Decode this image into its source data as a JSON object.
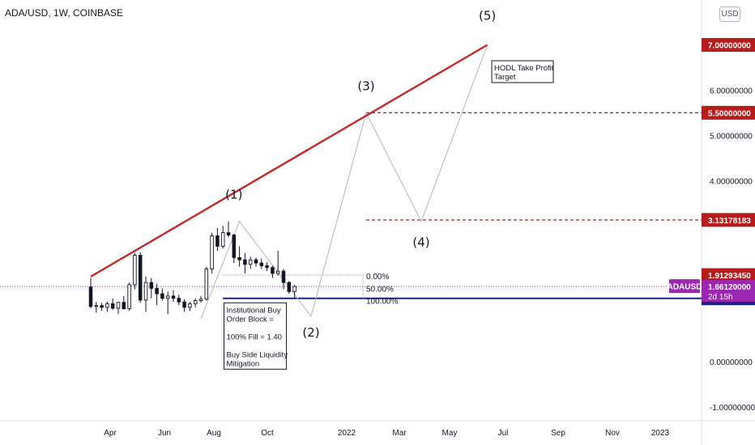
{
  "header": {
    "symbol": "ADA/USD, 1W, COINBASE",
    "currency_button": "USD"
  },
  "chart_data": {
    "type": "candlestick",
    "symbol": "ADAUSD",
    "scale": "linear",
    "ylim": [
      -1.2,
      8.1
    ],
    "y_ticks": [
      {
        "value": 6.0,
        "label": "6.00000000"
      },
      {
        "value": 5.0,
        "label": "5.00000000"
      },
      {
        "value": 4.0,
        "label": "4.00000000"
      },
      {
        "value": 0.0,
        "label": "0.00000000"
      },
      {
        "value": -1.0,
        "label": "-1.00000000"
      }
    ],
    "x_ticks": [
      "Apr",
      "Jun",
      "Aug",
      "Oct",
      "2022",
      "Mar",
      "May",
      "Jul",
      "Sep",
      "Nov",
      "2023"
    ],
    "candles": [
      {
        "o": 1.65,
        "h": 1.85,
        "l": 1.18,
        "c": 1.22
      },
      {
        "o": 1.22,
        "h": 1.32,
        "l": 1.08,
        "c": 1.24
      },
      {
        "o": 1.24,
        "h": 1.3,
        "l": 1.12,
        "c": 1.2
      },
      {
        "o": 1.2,
        "h": 1.33,
        "l": 1.1,
        "c": 1.28
      },
      {
        "o": 1.28,
        "h": 1.4,
        "l": 1.15,
        "c": 1.18
      },
      {
        "o": 1.18,
        "h": 1.32,
        "l": 1.05,
        "c": 1.31
      },
      {
        "o": 1.31,
        "h": 1.45,
        "l": 1.15,
        "c": 1.17
      },
      {
        "o": 1.17,
        "h": 1.75,
        "l": 1.12,
        "c": 1.7
      },
      {
        "o": 1.7,
        "h": 2.4,
        "l": 1.6,
        "c": 2.35
      },
      {
        "o": 2.35,
        "h": 2.42,
        "l": 1.3,
        "c": 1.36
      },
      {
        "o": 1.36,
        "h": 1.88,
        "l": 1.1,
        "c": 1.75
      },
      {
        "o": 1.75,
        "h": 1.85,
        "l": 1.4,
        "c": 1.62
      },
      {
        "o": 1.62,
        "h": 1.72,
        "l": 1.25,
        "c": 1.5
      },
      {
        "o": 1.5,
        "h": 1.62,
        "l": 1.35,
        "c": 1.4
      },
      {
        "o": 1.4,
        "h": 1.55,
        "l": 1.05,
        "c": 1.45
      },
      {
        "o": 1.45,
        "h": 1.58,
        "l": 1.32,
        "c": 1.4
      },
      {
        "o": 1.4,
        "h": 1.48,
        "l": 1.25,
        "c": 1.32
      },
      {
        "o": 1.32,
        "h": 1.38,
        "l": 1.1,
        "c": 1.2
      },
      {
        "o": 1.2,
        "h": 1.32,
        "l": 1.12,
        "c": 1.28
      },
      {
        "o": 1.28,
        "h": 1.4,
        "l": 1.2,
        "c": 1.35
      },
      {
        "o": 1.35,
        "h": 1.45,
        "l": 1.3,
        "c": 1.38
      },
      {
        "o": 1.38,
        "h": 2.1,
        "l": 1.35,
        "c": 2.05
      },
      {
        "o": 2.05,
        "h": 2.85,
        "l": 1.95,
        "c": 2.78
      },
      {
        "o": 2.78,
        "h": 2.95,
        "l": 2.45,
        "c": 2.55
      },
      {
        "o": 2.55,
        "h": 3.0,
        "l": 2.5,
        "c": 2.85
      },
      {
        "o": 2.85,
        "h": 3.1,
        "l": 2.75,
        "c": 2.8
      },
      {
        "o": 2.8,
        "h": 2.82,
        "l": 2.18,
        "c": 2.3
      },
      {
        "o": 2.3,
        "h": 2.55,
        "l": 2.1,
        "c": 2.25
      },
      {
        "o": 2.25,
        "h": 2.4,
        "l": 1.95,
        "c": 2.15
      },
      {
        "o": 2.15,
        "h": 2.32,
        "l": 2.05,
        "c": 2.25
      },
      {
        "o": 2.25,
        "h": 2.3,
        "l": 2.1,
        "c": 2.18
      },
      {
        "o": 2.18,
        "h": 2.28,
        "l": 2.05,
        "c": 2.12
      },
      {
        "o": 2.12,
        "h": 2.2,
        "l": 2.0,
        "c": 2.08
      },
      {
        "o": 2.08,
        "h": 2.12,
        "l": 1.85,
        "c": 1.95
      },
      {
        "o": 1.95,
        "h": 2.45,
        "l": 1.9,
        "c": 2.0
      },
      {
        "o": 2.0,
        "h": 2.05,
        "l": 1.6,
        "c": 1.75
      },
      {
        "o": 1.75,
        "h": 1.78,
        "l": 1.5,
        "c": 1.55
      },
      {
        "o": 1.55,
        "h": 1.7,
        "l": 1.4,
        "c": 1.66
      }
    ],
    "price_lines": [
      {
        "value": 7.0,
        "label": "7.00000000",
        "style": "price-tag",
        "color": "#b71c1c"
      },
      {
        "value": 5.5,
        "label": "5.50000000",
        "style": "dashed",
        "color": "#b71c1c"
      },
      {
        "value": 3.13178183,
        "label": "3.13178183",
        "style": "dashed",
        "color": "#b71c1c"
      },
      {
        "value": 1.9129345,
        "label": "1.91293450",
        "style": "price-tag",
        "color": "#b71c1c"
      },
      {
        "value": 1.4,
        "label": "1.40000000",
        "style": "solid",
        "color": "#1a237e"
      }
    ],
    "current_price": {
      "value": 1.6612,
      "label": "1.66120000",
      "countdown": "2d 15h",
      "symbol_tag": "ADAUSD",
      "color": "#9c27b0"
    },
    "fib_levels": [
      {
        "label": "0.00%",
        "value": 1.9129345
      },
      {
        "label": "50.00%",
        "value": 1.65646725
      },
      {
        "label": "100.00%",
        "value": 1.4
      }
    ],
    "trendline": {
      "color": "#c62828",
      "points": [
        {
          "week": 0,
          "value": 1.88
        },
        {
          "week": 72,
          "value": 7.0
        }
      ]
    },
    "wave_path": {
      "color": "#bdbdbd",
      "points": [
        {
          "week": 20,
          "value": 0.95
        },
        {
          "week": 27,
          "value": 3.1
        },
        {
          "week": 40,
          "value": 1.0
        },
        {
          "week": 50,
          "value": 5.5
        },
        {
          "week": 60,
          "value": 3.1
        },
        {
          "week": 72,
          "value": 7.0
        }
      ]
    },
    "wave_labels": [
      {
        "label": "(1)",
        "week": 26,
        "value": 3.6
      },
      {
        "label": "(2)",
        "week": 40,
        "value": 0.55
      },
      {
        "label": "(3)",
        "week": 50,
        "value": 6.0
      },
      {
        "label": "(4)",
        "week": 60,
        "value": 2.55
      },
      {
        "label": "(5)",
        "week": 72,
        "value": 7.55
      }
    ],
    "annotations": [
      {
        "name": "order-block-note",
        "week": 24.2,
        "value": 1.3,
        "lines": [
          "Institutional Buy",
          "Order Block =",
          "",
          "100% Fill = 1.40",
          "",
          "Buy Side Liquidity",
          "Mitigation"
        ]
      },
      {
        "name": "take-profit-note",
        "week": 72.8,
        "value": 6.65,
        "lines": [
          "HODL Take Profit",
          "Target"
        ]
      }
    ]
  }
}
